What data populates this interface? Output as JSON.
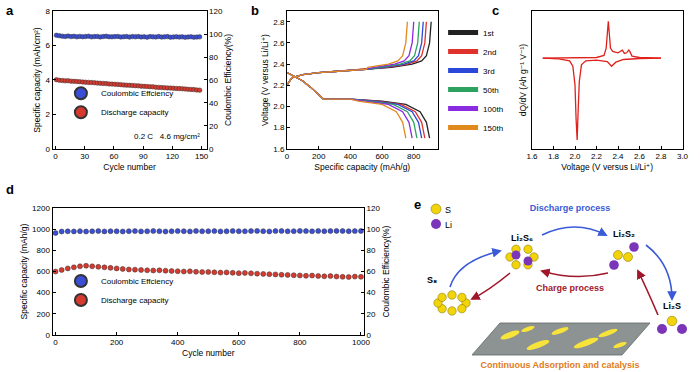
{
  "chart_data": [
    {
      "panel": "a",
      "type": "scatter",
      "marker": "circle",
      "grid": false,
      "legend": "lower left",
      "x_label": "Cycle number",
      "y_label": "Specific capacity (mAh/cm²)",
      "y2_label": "Coulombic Efficiency(%)",
      "annotation": "0.2 C   4.6 mg/cm²",
      "xlim": [
        -3,
        155
      ],
      "xticks": [
        0,
        30,
        60,
        90,
        120,
        150
      ],
      "ylim": [
        0,
        8
      ],
      "yticks": [
        0,
        2,
        4,
        6,
        8
      ],
      "y2lim": [
        0,
        120
      ],
      "y2ticks": [
        0,
        20,
        40,
        60,
        80,
        100,
        120
      ],
      "x": [
        1,
        4,
        7,
        10,
        13,
        16,
        19,
        22,
        25,
        28,
        31,
        34,
        37,
        40,
        43,
        46,
        49,
        52,
        55,
        58,
        61,
        64,
        67,
        70,
        73,
        76,
        79,
        82,
        85,
        88,
        91,
        94,
        97,
        100,
        103,
        106,
        109,
        112,
        115,
        118,
        121,
        124,
        127,
        130,
        133,
        136,
        139,
        142,
        145,
        148
      ],
      "series": [
        {
          "name": "Coulombic Effciency",
          "color": "#3b4fd6",
          "axis": "y2",
          "values": [
            99.0,
            98.6,
            98.2,
            97.9,
            98.3,
            97.8,
            98.1,
            97.6,
            98.0,
            97.7,
            97.9,
            98.2,
            97.6,
            97.8,
            98.0,
            97.5,
            97.9,
            98.1,
            97.7,
            97.6,
            97.8,
            98.0,
            97.5,
            97.7,
            97.9,
            97.4,
            97.8,
            97.6,
            97.9,
            97.5,
            97.7,
            97.3,
            97.8,
            97.6,
            97.5,
            97.9,
            97.4,
            97.6,
            97.8,
            97.3,
            97.5,
            97.7,
            97.4,
            97.6,
            97.2,
            97.5,
            97.7,
            97.3,
            97.4,
            97.6
          ]
        },
        {
          "name": "Discharge capacity",
          "color": "#d63a2f",
          "values": [
            4.02,
            3.98,
            3.97,
            3.95,
            3.96,
            3.93,
            3.92,
            3.91,
            3.9,
            3.88,
            3.87,
            3.86,
            3.85,
            3.84,
            3.82,
            3.81,
            3.8,
            3.79,
            3.77,
            3.76,
            3.75,
            3.74,
            3.73,
            3.71,
            3.7,
            3.69,
            3.68,
            3.67,
            3.66,
            3.64,
            3.63,
            3.62,
            3.61,
            3.6,
            3.58,
            3.57,
            3.56,
            3.55,
            3.54,
            3.53,
            3.52,
            3.51,
            3.5,
            3.49,
            3.48,
            3.46,
            3.45,
            3.44,
            3.42,
            3.41
          ]
        }
      ]
    },
    {
      "panel": "b",
      "type": "line",
      "line_style": "solid",
      "grid": false,
      "legend": "right",
      "x_label": "Specific capacity (mAh/g)",
      "y_label": "Voltage (V versus Li/Li⁺)",
      "xlim": [
        0,
        950
      ],
      "xticks": [
        0,
        200,
        400,
        600,
        800
      ],
      "ylim": [
        1.6,
        2.9
      ],
      "yticks": [
        1.6,
        1.8,
        {
          "value": 2,
          "label": "2.0"
        },
        2.2,
        2.4,
        2.6,
        2.8
      ],
      "series": [
        {
          "name": "1st",
          "color": "#222222",
          "x": [
            0,
            50,
            100,
            150,
            200,
            230,
            300,
            400,
            600,
            750,
            840,
            880,
            900,
            null,
            0,
            30,
            100,
            200,
            300,
            400,
            500,
            660,
            790,
            850,
            880,
            900,
            910
          ],
          "values": [
            2.32,
            2.28,
            2.24,
            2.18,
            2.11,
            2.07,
            2.07,
            2.07,
            2.05,
            2.02,
            1.95,
            1.85,
            1.7,
            null,
            2.2,
            2.27,
            2.3,
            2.32,
            2.33,
            2.34,
            2.35,
            2.37,
            2.4,
            2.43,
            2.48,
            2.6,
            2.8
          ]
        },
        {
          "name": "2nd",
          "color": "#e0312b",
          "x": [
            0,
            50,
            100,
            150,
            200,
            230,
            300,
            400,
            570,
            720,
            810,
            850,
            870,
            null,
            0,
            30,
            100,
            200,
            300,
            400,
            500,
            630,
            760,
            820,
            850,
            870,
            880
          ],
          "values": [
            2.32,
            2.28,
            2.24,
            2.18,
            2.11,
            2.07,
            2.07,
            2.07,
            2.05,
            2.02,
            1.95,
            1.85,
            1.7,
            null,
            2.2,
            2.27,
            2.3,
            2.32,
            2.33,
            2.34,
            2.35,
            2.37,
            2.4,
            2.43,
            2.48,
            2.6,
            2.8
          ]
        },
        {
          "name": "3rd",
          "color": "#2b48d8",
          "x": [
            0,
            50,
            100,
            150,
            200,
            230,
            300,
            400,
            550,
            700,
            790,
            830,
            850,
            null,
            0,
            30,
            100,
            200,
            300,
            400,
            500,
            610,
            740,
            800,
            830,
            850,
            860
          ],
          "values": [
            2.32,
            2.28,
            2.24,
            2.18,
            2.11,
            2.07,
            2.07,
            2.07,
            2.05,
            2.02,
            1.95,
            1.85,
            1.7,
            null,
            2.2,
            2.27,
            2.3,
            2.32,
            2.33,
            2.34,
            2.35,
            2.37,
            2.4,
            2.43,
            2.48,
            2.6,
            2.8
          ]
        },
        {
          "name": "50th",
          "color": "#2ca25f",
          "x": [
            0,
            50,
            100,
            150,
            200,
            230,
            300,
            400,
            520,
            670,
            760,
            800,
            820,
            null,
            0,
            30,
            100,
            200,
            300,
            400,
            500,
            585,
            715,
            775,
            805,
            825,
            835
          ],
          "values": [
            2.32,
            2.28,
            2.24,
            2.18,
            2.11,
            2.07,
            2.07,
            2.07,
            2.05,
            2.02,
            1.95,
            1.85,
            1.7,
            null,
            2.2,
            2.27,
            2.3,
            2.32,
            2.33,
            2.34,
            2.35,
            2.37,
            2.4,
            2.43,
            2.48,
            2.6,
            2.8
          ]
        },
        {
          "name": "100th",
          "color": "#8a2be2",
          "x": [
            0,
            50,
            100,
            150,
            200,
            230,
            300,
            400,
            490,
            640,
            730,
            770,
            790,
            null,
            0,
            30,
            100,
            200,
            300,
            400,
            500,
            550,
            680,
            740,
            770,
            790,
            800
          ],
          "values": [
            2.32,
            2.28,
            2.24,
            2.18,
            2.11,
            2.07,
            2.07,
            2.07,
            2.05,
            2.02,
            1.95,
            1.85,
            1.7,
            null,
            2.2,
            2.27,
            2.3,
            2.32,
            2.33,
            2.34,
            2.35,
            2.37,
            2.4,
            2.43,
            2.48,
            2.6,
            2.8
          ]
        },
        {
          "name": "150th",
          "color": "#e08a1e",
          "x": [
            0,
            50,
            100,
            150,
            200,
            230,
            300,
            400,
            450,
            600,
            690,
            730,
            750,
            null,
            0,
            30,
            100,
            200,
            300,
            400,
            500,
            510,
            640,
            700,
            730,
            750,
            760
          ],
          "values": [
            2.32,
            2.28,
            2.24,
            2.18,
            2.11,
            2.07,
            2.07,
            2.07,
            2.05,
            2.02,
            1.95,
            1.85,
            1.7,
            null,
            2.2,
            2.27,
            2.3,
            2.32,
            2.33,
            2.34,
            2.35,
            2.37,
            2.4,
            2.43,
            2.48,
            2.6,
            2.8
          ]
        }
      ]
    },
    {
      "panel": "c",
      "type": "line",
      "line_style": "solid",
      "grid": false,
      "tick_labels": "x",
      "x_label": "Voltage (V versus Li/Li⁺)",
      "y_label": "dQ/dV (Ah g⁻¹ V⁻¹)",
      "xlim": [
        1.6,
        3.0
      ],
      "xticks": [
        1.6,
        1.8,
        {
          "value": 2,
          "label": "2.0"
        },
        2.2,
        2.4,
        2.6,
        2.8,
        {
          "value": 3,
          "label": "3.0"
        }
      ],
      "ylim": [
        -1.35,
        0.7
      ],
      "x": [
        2.8,
        2.6,
        2.45,
        2.38,
        2.34,
        2.32,
        2.3,
        2.2,
        2.1,
        2.06,
        2.04,
        2.03,
        2.02,
        2.01,
        2.0,
        1.98,
        1.95,
        1.85,
        1.7,
        null,
        1.7,
        2.0,
        2.2,
        2.27,
        2.29,
        2.3,
        2.31,
        2.315,
        2.32,
        2.33,
        2.35,
        2.4,
        2.42,
        2.44,
        2.46,
        2.48,
        2.5,
        2.51,
        2.53,
        2.6,
        2.8
      ],
      "series": [
        {
          "color": "#e0201b",
          "values": [
            0,
            -0.005,
            -0.02,
            -0.06,
            -0.12,
            -0.08,
            -0.05,
            -0.03,
            -0.04,
            -0.1,
            -0.35,
            -0.75,
            -1.22,
            -0.9,
            -0.4,
            -0.12,
            -0.04,
            -0.01,
            0,
            null,
            0,
            0,
            0.01,
            0.04,
            0.15,
            0.35,
            0.55,
            0.45,
            0.3,
            0.15,
            0.1,
            0.08,
            0.1,
            0.12,
            0.07,
            0.08,
            0.12,
            0.1,
            0.03,
            0.01,
            0
          ]
        }
      ]
    },
    {
      "panel": "d",
      "type": "scatter",
      "marker": "circle",
      "grid": false,
      "legend": "lower left",
      "x_label": "Cycle number",
      "y_label": "Specific capacity (mAh/g)",
      "y2_label": "Coulombic Efficiency(%)",
      "xlim": [
        -10,
        1010
      ],
      "xticks": [
        0,
        200,
        400,
        600,
        800,
        1000
      ],
      "ylim": [
        0,
        1200
      ],
      "yticks": [
        0,
        200,
        400,
        600,
        800,
        1000,
        1200
      ],
      "y2lim": [
        0,
        120
      ],
      "y2ticks": [
        0,
        20,
        40,
        60,
        80,
        100,
        120
      ],
      "x": [
        0,
        20,
        40,
        60,
        80,
        100,
        120,
        140,
        160,
        180,
        200,
        220,
        240,
        260,
        280,
        300,
        320,
        340,
        360,
        380,
        400,
        420,
        440,
        460,
        480,
        500,
        520,
        540,
        560,
        580,
        600,
        620,
        640,
        660,
        680,
        700,
        720,
        740,
        760,
        780,
        800,
        820,
        840,
        860,
        880,
        900,
        920,
        940,
        960,
        980,
        1000
      ],
      "series": [
        {
          "name": "Coulombic Effciency",
          "color": "#3b4fd6",
          "axis": "y2",
          "values": [
            96.5,
            98.0,
            98.2,
            98.1,
            98.3,
            98.0,
            98.2,
            98.4,
            98.1,
            98.3,
            98.2,
            98.0,
            98.3,
            98.4,
            98.1,
            98.2,
            98.5,
            98.3,
            98.0,
            98.2,
            98.4,
            98.3,
            98.1,
            98.5,
            98.2,
            98.3,
            98.4,
            98.1,
            98.2,
            98.5,
            98.3,
            98.2,
            98.4,
            98.6,
            98.3,
            98.1,
            98.4,
            98.5,
            98.2,
            98.3,
            98.6,
            98.4,
            98.2,
            98.5,
            98.3,
            98.4,
            98.6,
            98.5,
            98.3,
            98.4,
            98.5
          ]
        },
        {
          "name": "Discharge capacity",
          "color": "#d63a2f",
          "values": [
            600,
            615,
            630,
            640,
            650,
            655,
            650,
            645,
            640,
            635,
            630,
            625,
            620,
            618,
            615,
            612,
            610,
            612,
            608,
            605,
            603,
            600,
            602,
            598,
            595,
            597,
            593,
            590,
            592,
            588,
            585,
            587,
            583,
            580,
            578,
            575,
            573,
            570,
            568,
            565,
            563,
            560,
            562,
            558,
            555,
            557,
            553,
            550,
            548,
            552,
            550
          ]
        }
      ]
    }
  ],
  "diagram": {
    "panel": "e",
    "legend": [
      {
        "label": "S",
        "color": "#f2d40a"
      },
      {
        "label": "Li",
        "color": "#7a35b8"
      }
    ],
    "species": [
      "S₈",
      "Li₂S₆",
      "Li₂S₂",
      "Li₂S"
    ],
    "discharge_label": "Discharge process",
    "charge_label": "Charge process",
    "caption": "Continuous Adsorption and catalysis"
  }
}
